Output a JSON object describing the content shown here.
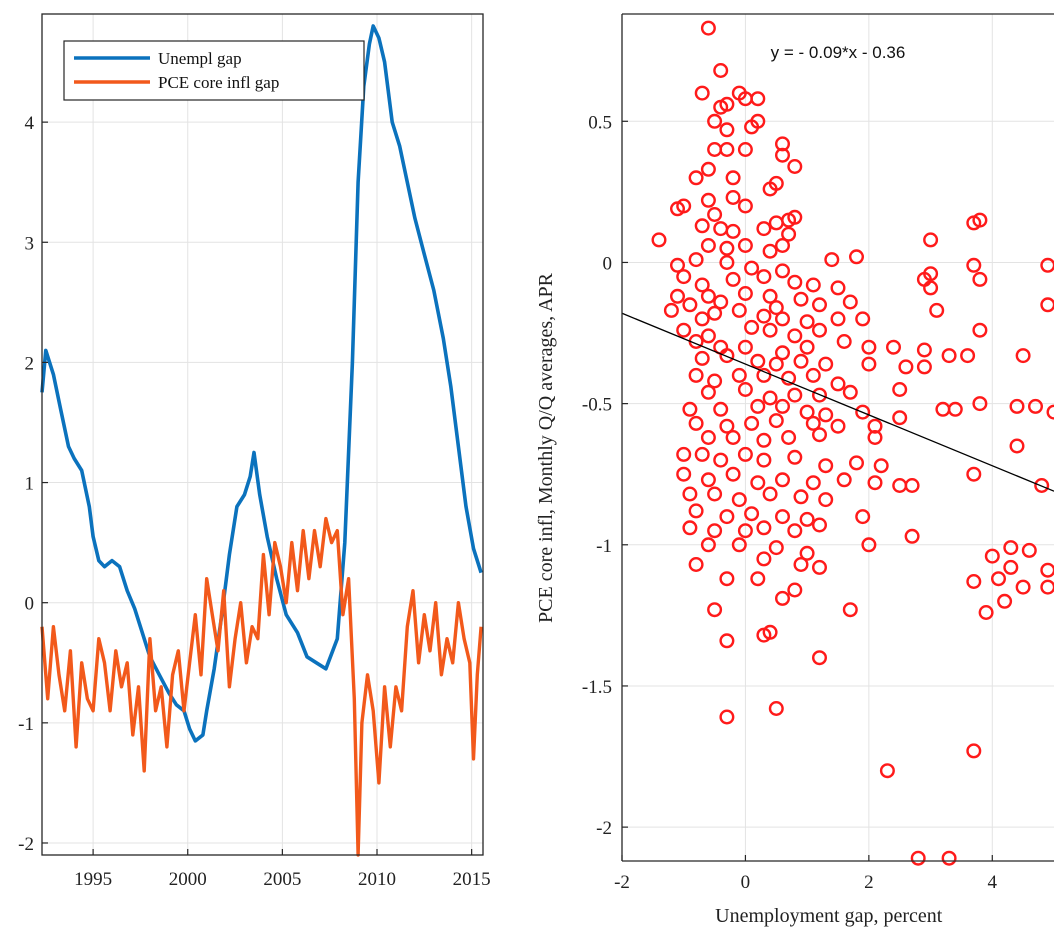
{
  "colors": {
    "unempl": "#0b72bd",
    "pce": "#f2591b",
    "scatter": "#ff1a1a",
    "fit": "#000000"
  },
  "chart_data": [
    {
      "type": "line",
      "title": "",
      "xlabel": "",
      "ylabel": "",
      "xlim": [
        1992.3,
        2015.6
      ],
      "ylim": [
        -2.1,
        4.9
      ],
      "grid": true,
      "legend_position": "top-left",
      "x_ticks": [
        1995,
        2000,
        2005,
        2010,
        2015
      ],
      "y_ticks": [
        -2,
        -1,
        0,
        1,
        2,
        3,
        4
      ],
      "series": [
        {
          "name": "Unempl gap",
          "x": [
            1992.3,
            1992.5,
            1992.9,
            1993.3,
            1993.7,
            1994.0,
            1994.4,
            1994.8,
            1995.0,
            1995.3,
            1995.6,
            1996.0,
            1996.4,
            1996.8,
            1997.2,
            1997.6,
            1998.0,
            1998.5,
            1999.0,
            1999.4,
            1999.8,
            2000.1,
            2000.4,
            2000.8,
            2001.0,
            2001.4,
            2001.8,
            2002.2,
            2002.6,
            2003.0,
            2003.3,
            2003.5,
            2003.8,
            2004.2,
            2004.7,
            2005.2,
            2005.8,
            2006.3,
            2006.8,
            2007.3,
            2007.9,
            2008.3,
            2008.7,
            2009.0,
            2009.3,
            2009.6,
            2009.8,
            2010.1,
            2010.4,
            2010.8,
            2011.2,
            2011.6,
            2012.0,
            2012.5,
            2013.0,
            2013.5,
            2013.9,
            2014.3,
            2014.7,
            2015.1,
            2015.5
          ],
          "values": [
            1.75,
            2.1,
            1.9,
            1.6,
            1.3,
            1.2,
            1.1,
            0.8,
            0.55,
            0.35,
            0.3,
            0.35,
            0.3,
            0.1,
            -0.05,
            -0.25,
            -0.45,
            -0.6,
            -0.75,
            -0.85,
            -0.9,
            -1.05,
            -1.15,
            -1.1,
            -0.9,
            -0.55,
            -0.1,
            0.4,
            0.8,
            0.9,
            1.05,
            1.25,
            0.9,
            0.55,
            0.2,
            -0.1,
            -0.25,
            -0.45,
            -0.5,
            -0.55,
            -0.3,
            0.5,
            2.0,
            3.5,
            4.3,
            4.65,
            4.8,
            4.7,
            4.5,
            4.0,
            3.8,
            3.5,
            3.2,
            2.9,
            2.6,
            2.2,
            1.8,
            1.3,
            0.8,
            0.45,
            0.25
          ]
        },
        {
          "name": "PCE core infl gap",
          "x": [
            1992.3,
            1992.6,
            1992.9,
            1993.2,
            1993.5,
            1993.8,
            1994.1,
            1994.4,
            1994.7,
            1995.0,
            1995.3,
            1995.6,
            1995.9,
            1996.2,
            1996.5,
            1996.8,
            1997.1,
            1997.4,
            1997.7,
            1998.0,
            1998.3,
            1998.6,
            1998.9,
            1999.2,
            1999.5,
            1999.8,
            2000.1,
            2000.4,
            2000.7,
            2001.0,
            2001.3,
            2001.6,
            2001.9,
            2002.2,
            2002.5,
            2002.8,
            2003.1,
            2003.4,
            2003.7,
            2004.0,
            2004.3,
            2004.6,
            2004.9,
            2005.2,
            2005.5,
            2005.8,
            2006.1,
            2006.4,
            2006.7,
            2007.0,
            2007.3,
            2007.6,
            2007.9,
            2008.2,
            2008.5,
            2008.8,
            2009.0,
            2009.2,
            2009.5,
            2009.8,
            2010.1,
            2010.4,
            2010.7,
            2011.0,
            2011.3,
            2011.6,
            2011.9,
            2012.2,
            2012.5,
            2012.8,
            2013.1,
            2013.4,
            2013.7,
            2014.0,
            2014.3,
            2014.6,
            2014.9,
            2015.1,
            2015.3,
            2015.5
          ],
          "values": [
            -0.2,
            -0.8,
            -0.2,
            -0.6,
            -0.9,
            -0.4,
            -1.2,
            -0.5,
            -0.8,
            -0.9,
            -0.3,
            -0.5,
            -0.9,
            -0.4,
            -0.7,
            -0.5,
            -1.1,
            -0.7,
            -1.4,
            -0.3,
            -0.9,
            -0.7,
            -1.2,
            -0.6,
            -0.4,
            -0.9,
            -0.5,
            -0.1,
            -0.6,
            0.2,
            -0.1,
            -0.4,
            0.1,
            -0.7,
            -0.3,
            0.0,
            -0.5,
            -0.2,
            -0.3,
            0.4,
            -0.1,
            0.5,
            0.3,
            0.0,
            0.5,
            0.1,
            0.6,
            0.2,
            0.6,
            0.3,
            0.7,
            0.5,
            0.6,
            -0.1,
            0.2,
            -0.8,
            -2.1,
            -1.0,
            -0.6,
            -0.9,
            -1.5,
            -0.7,
            -1.2,
            -0.7,
            -0.9,
            -0.2,
            0.1,
            -0.5,
            -0.1,
            -0.4,
            0.0,
            -0.6,
            -0.3,
            -0.5,
            0.0,
            -0.3,
            -0.5,
            -1.3,
            -0.6,
            -0.2
          ]
        }
      ]
    },
    {
      "type": "scatter",
      "title": "",
      "xlabel": "Unemployment gap, percent",
      "ylabel": "PCE core infl, Monthly Q/Q averages, APR",
      "xlim": [
        -2,
        5
      ],
      "ylim": [
        -2.12,
        0.88
      ],
      "grid": true,
      "x_ticks": [
        -2,
        0,
        2,
        4
      ],
      "y_ticks": [
        -2,
        -1.5,
        -1,
        -0.5,
        0,
        0.5
      ],
      "annotation": "y = - 0.09*x - 0.36",
      "fit": {
        "slope": -0.09,
        "intercept": -0.36
      },
      "points": [
        [
          -0.6,
          0.83
        ],
        [
          -0.4,
          0.68
        ],
        [
          -0.7,
          0.6
        ],
        [
          -0.3,
          0.56
        ],
        [
          -0.5,
          0.5
        ],
        [
          -0.4,
          0.55
        ],
        [
          -0.1,
          0.6
        ],
        [
          0.0,
          0.58
        ],
        [
          0.2,
          0.58
        ],
        [
          -0.3,
          0.47
        ],
        [
          0.1,
          0.48
        ],
        [
          0.2,
          0.5
        ],
        [
          -0.5,
          0.4
        ],
        [
          -0.3,
          0.4
        ],
        [
          0.0,
          0.4
        ],
        [
          0.6,
          0.42
        ],
        [
          0.6,
          0.38
        ],
        [
          0.8,
          0.34
        ],
        [
          -0.8,
          0.3
        ],
        [
          -0.6,
          0.33
        ],
        [
          -0.2,
          0.3
        ],
        [
          0.5,
          0.28
        ],
        [
          0.4,
          0.26
        ],
        [
          -0.6,
          0.22
        ],
        [
          -0.2,
          0.23
        ],
        [
          0.0,
          0.2
        ],
        [
          -1.0,
          0.2
        ],
        [
          -1.1,
          0.19
        ],
        [
          -0.7,
          0.13
        ],
        [
          -0.5,
          0.17
        ],
        [
          0.8,
          0.16
        ],
        [
          0.7,
          0.15
        ],
        [
          -0.4,
          0.12
        ],
        [
          -0.2,
          0.11
        ],
        [
          0.3,
          0.12
        ],
        [
          0.5,
          0.14
        ],
        [
          0.7,
          0.1
        ],
        [
          3.7,
          0.14
        ],
        [
          3.8,
          0.15
        ],
        [
          -1.4,
          0.08
        ],
        [
          -0.6,
          0.06
        ],
        [
          -0.3,
          0.05
        ],
        [
          0.0,
          0.06
        ],
        [
          0.4,
          0.04
        ],
        [
          0.6,
          0.06
        ],
        [
          3.0,
          0.08
        ],
        [
          -1.1,
          -0.01
        ],
        [
          -0.8,
          0.01
        ],
        [
          -0.3,
          0.0
        ],
        [
          0.1,
          -0.02
        ],
        [
          0.6,
          -0.03
        ],
        [
          1.4,
          0.01
        ],
        [
          1.8,
          0.02
        ],
        [
          3.7,
          -0.01
        ],
        [
          4.9,
          -0.01
        ],
        [
          -1.0,
          -0.05
        ],
        [
          -0.7,
          -0.08
        ],
        [
          -0.2,
          -0.06
        ],
        [
          0.3,
          -0.05
        ],
        [
          0.8,
          -0.07
        ],
        [
          1.1,
          -0.08
        ],
        [
          1.5,
          -0.09
        ],
        [
          2.9,
          -0.06
        ],
        [
          3.0,
          -0.04
        ],
        [
          3.8,
          -0.06
        ],
        [
          -1.1,
          -0.12
        ],
        [
          -0.9,
          -0.15
        ],
        [
          -0.6,
          -0.12
        ],
        [
          -0.4,
          -0.14
        ],
        [
          0.0,
          -0.11
        ],
        [
          0.4,
          -0.12
        ],
        [
          0.5,
          -0.16
        ],
        [
          0.9,
          -0.13
        ],
        [
          1.2,
          -0.15
        ],
        [
          1.7,
          -0.14
        ],
        [
          3.0,
          -0.09
        ],
        [
          4.9,
          -0.15
        ],
        [
          -1.2,
          -0.17
        ],
        [
          -0.7,
          -0.2
        ],
        [
          -0.5,
          -0.18
        ],
        [
          -0.1,
          -0.17
        ],
        [
          0.3,
          -0.19
        ],
        [
          0.6,
          -0.2
        ],
        [
          1.0,
          -0.21
        ],
        [
          1.5,
          -0.2
        ],
        [
          1.9,
          -0.2
        ],
        [
          3.1,
          -0.17
        ],
        [
          -1.0,
          -0.24
        ],
        [
          -0.6,
          -0.26
        ],
        [
          0.1,
          -0.23
        ],
        [
          0.4,
          -0.24
        ],
        [
          0.8,
          -0.26
        ],
        [
          1.2,
          -0.24
        ],
        [
          3.8,
          -0.24
        ],
        [
          -0.8,
          -0.28
        ],
        [
          -0.4,
          -0.3
        ],
        [
          0.0,
          -0.3
        ],
        [
          0.6,
          -0.32
        ],
        [
          1.0,
          -0.3
        ],
        [
          1.6,
          -0.28
        ],
        [
          2.0,
          -0.3
        ],
        [
          2.4,
          -0.3
        ],
        [
          2.9,
          -0.31
        ],
        [
          -0.7,
          -0.34
        ],
        [
          -0.3,
          -0.33
        ],
        [
          0.2,
          -0.35
        ],
        [
          0.5,
          -0.36
        ],
        [
          0.9,
          -0.35
        ],
        [
          1.3,
          -0.36
        ],
        [
          2.0,
          -0.36
        ],
        [
          3.3,
          -0.33
        ],
        [
          3.6,
          -0.33
        ],
        [
          4.5,
          -0.33
        ],
        [
          -0.8,
          -0.4
        ],
        [
          -0.5,
          -0.42
        ],
        [
          -0.1,
          -0.4
        ],
        [
          0.3,
          -0.4
        ],
        [
          0.7,
          -0.41
        ],
        [
          1.1,
          -0.4
        ],
        [
          1.5,
          -0.43
        ],
        [
          2.6,
          -0.37
        ],
        [
          2.9,
          -0.37
        ],
        [
          -0.6,
          -0.46
        ],
        [
          0.0,
          -0.45
        ],
        [
          0.4,
          -0.48
        ],
        [
          0.8,
          -0.47
        ],
        [
          1.2,
          -0.47
        ],
        [
          1.7,
          -0.46
        ],
        [
          2.5,
          -0.45
        ],
        [
          -0.9,
          -0.52
        ],
        [
          -0.4,
          -0.52
        ],
        [
          0.2,
          -0.51
        ],
        [
          0.6,
          -0.51
        ],
        [
          1.0,
          -0.53
        ],
        [
          1.3,
          -0.54
        ],
        [
          1.9,
          -0.53
        ],
        [
          2.5,
          -0.55
        ],
        [
          3.2,
          -0.52
        ],
        [
          3.4,
          -0.52
        ],
        [
          4.4,
          -0.51
        ],
        [
          4.7,
          -0.51
        ],
        [
          5.0,
          -0.53
        ],
        [
          -0.8,
          -0.57
        ],
        [
          -0.3,
          -0.58
        ],
        [
          0.1,
          -0.57
        ],
        [
          0.5,
          -0.56
        ],
        [
          1.1,
          -0.57
        ],
        [
          1.5,
          -0.58
        ],
        [
          2.1,
          -0.58
        ],
        [
          3.8,
          -0.5
        ],
        [
          -0.6,
          -0.62
        ],
        [
          -0.2,
          -0.62
        ],
        [
          0.3,
          -0.63
        ],
        [
          0.7,
          -0.62
        ],
        [
          1.2,
          -0.61
        ],
        [
          2.1,
          -0.62
        ],
        [
          4.4,
          -0.65
        ],
        [
          -1.0,
          -0.68
        ],
        [
          -0.7,
          -0.68
        ],
        [
          -0.4,
          -0.7
        ],
        [
          0.0,
          -0.68
        ],
        [
          0.3,
          -0.7
        ],
        [
          0.8,
          -0.69
        ],
        [
          1.3,
          -0.72
        ],
        [
          1.8,
          -0.71
        ],
        [
          2.2,
          -0.72
        ],
        [
          -1.0,
          -0.75
        ],
        [
          -0.6,
          -0.77
        ],
        [
          -0.2,
          -0.75
        ],
        [
          0.2,
          -0.78
        ],
        [
          0.6,
          -0.77
        ],
        [
          1.1,
          -0.78
        ],
        [
          1.6,
          -0.77
        ],
        [
          2.1,
          -0.78
        ],
        [
          2.5,
          -0.79
        ],
        [
          2.7,
          -0.79
        ],
        [
          3.7,
          -0.75
        ],
        [
          4.8,
          -0.79
        ],
        [
          -0.9,
          -0.82
        ],
        [
          -0.5,
          -0.82
        ],
        [
          -0.1,
          -0.84
        ],
        [
          0.4,
          -0.82
        ],
        [
          0.9,
          -0.83
        ],
        [
          1.3,
          -0.84
        ],
        [
          -0.8,
          -0.88
        ],
        [
          -0.3,
          -0.9
        ],
        [
          0.1,
          -0.89
        ],
        [
          0.6,
          -0.9
        ],
        [
          1.0,
          -0.91
        ],
        [
          1.9,
          -0.9
        ],
        [
          -0.9,
          -0.94
        ],
        [
          -0.5,
          -0.95
        ],
        [
          0.0,
          -0.95
        ],
        [
          0.3,
          -0.94
        ],
        [
          0.8,
          -0.95
        ],
        [
          1.2,
          -0.93
        ],
        [
          2.7,
          -0.97
        ],
        [
          -0.6,
          -1.0
        ],
        [
          -0.1,
          -1.0
        ],
        [
          0.5,
          -1.01
        ],
        [
          1.0,
          -1.03
        ],
        [
          2.0,
          -1.0
        ],
        [
          4.3,
          -1.01
        ],
        [
          4.6,
          -1.02
        ],
        [
          -0.8,
          -1.07
        ],
        [
          0.3,
          -1.05
        ],
        [
          0.9,
          -1.07
        ],
        [
          1.2,
          -1.08
        ],
        [
          4.0,
          -1.04
        ],
        [
          4.3,
          -1.08
        ],
        [
          4.9,
          -1.09
        ],
        [
          -0.3,
          -1.12
        ],
        [
          0.2,
          -1.12
        ],
        [
          0.8,
          -1.16
        ],
        [
          3.7,
          -1.13
        ],
        [
          4.1,
          -1.12
        ],
        [
          4.5,
          -1.15
        ],
        [
          4.9,
          -1.15
        ],
        [
          0.6,
          -1.19
        ],
        [
          1.7,
          -1.23
        ],
        [
          3.9,
          -1.24
        ],
        [
          4.2,
          -1.2
        ],
        [
          -0.5,
          -1.23
        ],
        [
          -0.3,
          -1.34
        ],
        [
          0.3,
          -1.32
        ],
        [
          0.4,
          -1.31
        ],
        [
          1.2,
          -1.4
        ],
        [
          -0.3,
          -1.61
        ],
        [
          0.5,
          -1.58
        ],
        [
          2.3,
          -1.8
        ],
        [
          3.7,
          -1.73
        ],
        [
          2.8,
          -2.11
        ],
        [
          3.3,
          -2.11
        ]
      ]
    }
  ]
}
